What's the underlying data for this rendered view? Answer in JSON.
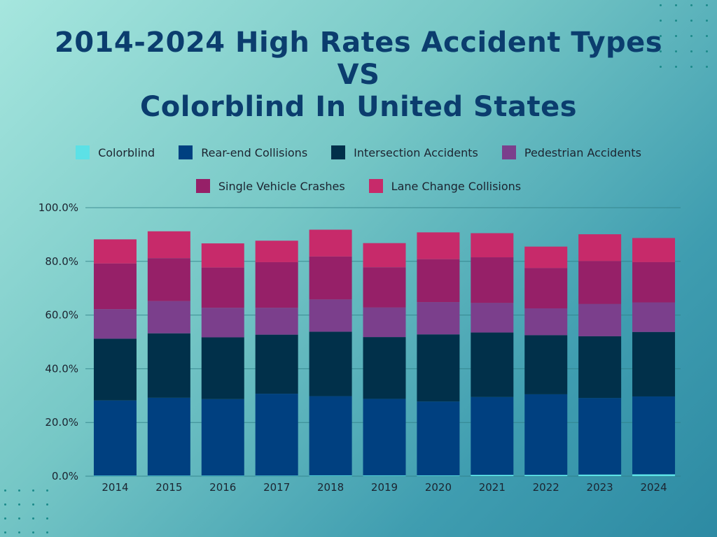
{
  "title_lines": [
    "2014-2024 High Rates Accident Types",
    "VS",
    "Colorblind In United States"
  ],
  "chart_data": {
    "type": "bar",
    "stacked": true,
    "categories": [
      "2014",
      "2015",
      "2016",
      "2017",
      "2018",
      "2019",
      "2020",
      "2021",
      "2022",
      "2023",
      "2024"
    ],
    "series": [
      {
        "name": "Colorblind",
        "color": "#5ce1e6",
        "values": [
          0.2,
          0.2,
          0.2,
          0.2,
          0.3,
          0.3,
          0.3,
          0.5,
          0.5,
          0.6,
          0.7
        ]
      },
      {
        "name": "Rear-end Collisions",
        "color": "#004080",
        "values": [
          28,
          29,
          28.5,
          30.5,
          29.5,
          28.5,
          27.5,
          29,
          30,
          28.5,
          29
        ]
      },
      {
        "name": "Intersection Accidents",
        "color": "#01304a",
        "values": [
          23,
          24,
          23,
          22,
          24,
          23,
          25,
          24,
          22,
          23,
          24
        ]
      },
      {
        "name": "Pedestrian Accidents",
        "color": "#7b3f8c",
        "values": [
          11,
          12,
          11,
          10,
          12,
          11,
          12,
          11,
          10,
          12,
          11
        ]
      },
      {
        "name": "Single Vehicle Crashes",
        "color": "#962068",
        "values": [
          17,
          16,
          15,
          17,
          16,
          15,
          16,
          17,
          15,
          16,
          15
        ]
      },
      {
        "name": "Lane Change Collisions",
        "color": "#c72a6a",
        "values": [
          9,
          10,
          9,
          8,
          10,
          9,
          10,
          9,
          8,
          10,
          9
        ]
      }
    ],
    "yticks": [
      "0.0%",
      "20.0%",
      "40.0%",
      "60.0%",
      "80.0%",
      "100.0%"
    ],
    "ylim": [
      0,
      100
    ],
    "grid": true,
    "legend_position": "top"
  }
}
